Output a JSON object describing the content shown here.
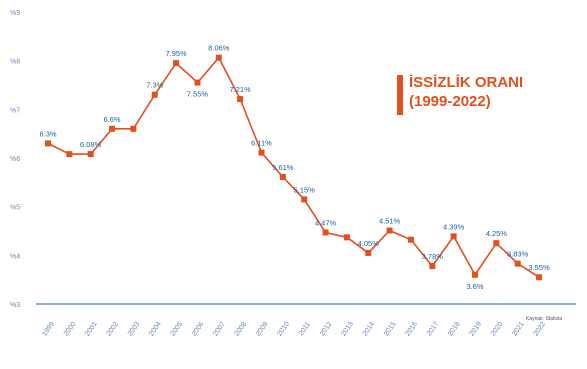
{
  "chart_data": {
    "type": "line",
    "title": "İSSİZLİK ORANI",
    "subtitle": "(1999-2022)",
    "source": "Kaynak: Statista",
    "colors": {
      "line": "#e2501f",
      "axis": "#1f5fa8",
      "tick_label": "#6a8ab8",
      "data_label": "#1f5fa8"
    },
    "x": [
      "1999",
      "2000",
      "2001",
      "2002",
      "2003",
      "2004",
      "2005",
      "2006",
      "2007",
      "2008",
      "2009",
      "2010",
      "2011",
      "2012",
      "2013",
      "2014",
      "2015",
      "2016",
      "2017",
      "2018",
      "2019",
      "2020",
      "2021",
      "2022"
    ],
    "values": [
      6.3,
      6.08,
      6.08,
      6.6,
      6.6,
      7.3,
      7.95,
      7.55,
      8.06,
      7.21,
      6.11,
      5.61,
      5.15,
      4.47,
      4.37,
      4.05,
      4.51,
      4.32,
      3.78,
      4.39,
      3.6,
      4.25,
      3.83,
      3.55
    ],
    "data_labels": [
      {
        "index": 0,
        "text": "6.3%"
      },
      {
        "index": 2,
        "text": "6.08%"
      },
      {
        "index": 3,
        "text": "6.6%"
      },
      {
        "index": 5,
        "text": "7.3%"
      },
      {
        "index": 6,
        "text": "7.95%"
      },
      {
        "index": 7,
        "text": "7.55%"
      },
      {
        "index": 8,
        "text": "8.06%"
      },
      {
        "index": 9,
        "text": "7.21%"
      },
      {
        "index": 10,
        "text": "6.11%"
      },
      {
        "index": 11,
        "text": "5.61%"
      },
      {
        "index": 12,
        "text": "5.15%"
      },
      {
        "index": 13,
        "text": "4.47%"
      },
      {
        "index": 15,
        "text": "4.05%"
      },
      {
        "index": 16,
        "text": "4.51%"
      },
      {
        "index": 18,
        "text": "3.78%"
      },
      {
        "index": 19,
        "text": "4.39%"
      },
      {
        "index": 20,
        "text": "3.6%"
      },
      {
        "index": 21,
        "text": "4.25%"
      },
      {
        "index": 22,
        "text": "3.83%"
      },
      {
        "index": 23,
        "text": "3.55%"
      }
    ],
    "y_ticks": [
      {
        "value": 9,
        "label": "%9"
      },
      {
        "value": 8,
        "label": "%8"
      },
      {
        "value": 7,
        "label": "%7"
      },
      {
        "value": 6,
        "label": "%6"
      },
      {
        "value": 5,
        "label": "%5"
      },
      {
        "value": 4,
        "label": "%4"
      },
      {
        "value": 3,
        "label": "%3"
      }
    ],
    "ylim": [
      3,
      9
    ],
    "grid": false
  }
}
